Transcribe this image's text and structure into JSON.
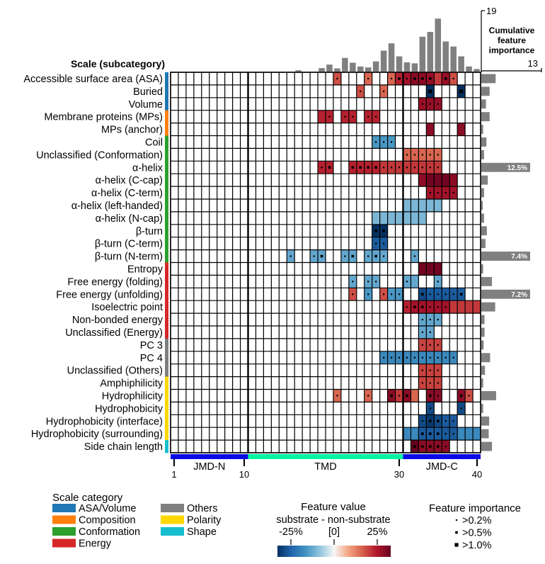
{
  "chart_data": {
    "type": "heatmap",
    "row_axis_label": "Scale (subcategory)",
    "positions": {
      "start": 1,
      "end": 40,
      "tick_labels": [
        "1",
        "10",
        "30",
        "40"
      ]
    },
    "regions": [
      {
        "name": "JMD-N",
        "start": 1,
        "end": 10,
        "color": "#0a0ae6"
      },
      {
        "name": "TMD",
        "start": 11,
        "end": 30,
        "color": "#00f5a0"
      },
      {
        "name": "JMD-C",
        "start": 31,
        "end": 40,
        "color": "#0a0ae6"
      }
    ],
    "rows": [
      {
        "label": "Accessible surface area (ASA)",
        "category": "ASA/Volume",
        "importance": 3.1
      },
      {
        "label": "Buried",
        "category": "ASA/Volume",
        "importance": 1.8
      },
      {
        "label": "Volume",
        "category": "ASA/Volume",
        "importance": 1.0
      },
      {
        "label": "Membrane proteins (MPs)",
        "category": "Composition",
        "importance": 1.8
      },
      {
        "label": "MPs (anchor)",
        "category": "Composition",
        "importance": 0.4
      },
      {
        "label": "Coil",
        "category": "Conformation",
        "importance": 1.1
      },
      {
        "label": "Unclassified (Conformation)",
        "category": "Conformation",
        "importance": 0.6
      },
      {
        "label": "α-helix",
        "category": "Conformation",
        "importance": 12.5,
        "label_value": "12.5%"
      },
      {
        "label": "α-helix (C-cap)",
        "category": "Conformation",
        "importance": 1.4
      },
      {
        "label": "α-helix (C-term)",
        "category": "Conformation",
        "importance": 0.6
      },
      {
        "label": "α-helix (left-handed)",
        "category": "Conformation",
        "importance": 0.3
      },
      {
        "label": "α-helix (N-cap)",
        "category": "Conformation",
        "importance": 0.6
      },
      {
        "label": "β-turn",
        "category": "Conformation",
        "importance": 1.2
      },
      {
        "label": "β-turn (C-term)",
        "category": "Conformation",
        "importance": 0.9
      },
      {
        "label": "β-turn (N-term)",
        "category": "Conformation",
        "importance": 7.4,
        "label_value": "7.4%"
      },
      {
        "label": "Entropy",
        "category": "Energy",
        "importance": 0.4
      },
      {
        "label": "Free energy (folding)",
        "category": "Energy",
        "importance": 2.3
      },
      {
        "label": "Free energy (unfolding)",
        "category": "Energy",
        "importance": 7.2,
        "label_value": "7.2%"
      },
      {
        "label": "Isoelectric point",
        "category": "Energy",
        "importance": 3.0
      },
      {
        "label": "Non-bonded energy",
        "category": "Energy",
        "importance": 0.7
      },
      {
        "label": "Unclassified (Energy)",
        "category": "Energy",
        "importance": 0.7
      },
      {
        "label": "PC 3",
        "category": "Others",
        "importance": 0.5
      },
      {
        "label": "PC 4",
        "category": "Others",
        "importance": 1.9
      },
      {
        "label": "Unclassified (Others)",
        "category": "Others",
        "importance": 0.8
      },
      {
        "label": "Amphiphilicity",
        "category": "Polarity",
        "importance": 0.4
      },
      {
        "label": "Hydrophilicity",
        "category": "Polarity",
        "importance": 3.2
      },
      {
        "label": "Hydrophobicity",
        "category": "Polarity",
        "importance": 0.4
      },
      {
        "label": "Hydrophobicity (interface)",
        "category": "Polarity",
        "importance": 1.7
      },
      {
        "label": "Hydrophobicity (surrounding)",
        "category": "Polarity",
        "importance": 1.6
      },
      {
        "label": "Side chain length",
        "category": "Shape",
        "importance": 2.3
      }
    ],
    "cells": [
      [
        0,
        22,
        14,
        1
      ],
      [
        0,
        26,
        12,
        1
      ],
      [
        0,
        29,
        12,
        1
      ],
      [
        0,
        30,
        18,
        2
      ],
      [
        0,
        31,
        20,
        1
      ],
      [
        0,
        32,
        22,
        2
      ],
      [
        0,
        33,
        22,
        2
      ],
      [
        0,
        34,
        21,
        2
      ],
      [
        0,
        35,
        16,
        0
      ],
      [
        0,
        36,
        21,
        2
      ],
      [
        0,
        37,
        14,
        1
      ],
      [
        1,
        25,
        14,
        1
      ],
      [
        1,
        28,
        12,
        1
      ],
      [
        1,
        34,
        -25,
        3
      ],
      [
        1,
        38,
        -25,
        3
      ],
      [
        2,
        33,
        21,
        1
      ],
      [
        2,
        34,
        21,
        1
      ],
      [
        2,
        35,
        21,
        1
      ],
      [
        3,
        20,
        18,
        0
      ],
      [
        3,
        21,
        18,
        1
      ],
      [
        3,
        23,
        18,
        1
      ],
      [
        3,
        24,
        18,
        1
      ],
      [
        3,
        26,
        18,
        1
      ],
      [
        3,
        27,
        18,
        1
      ],
      [
        4,
        34,
        22,
        0
      ],
      [
        4,
        38,
        22,
        0
      ],
      [
        5,
        27,
        -12,
        1
      ],
      [
        5,
        28,
        -12,
        1
      ],
      [
        5,
        29,
        -12,
        1
      ],
      [
        6,
        31,
        12,
        1
      ],
      [
        6,
        32,
        12,
        1
      ],
      [
        6,
        33,
        12,
        1
      ],
      [
        6,
        34,
        12,
        1
      ],
      [
        6,
        35,
        12,
        1
      ],
      [
        7,
        20,
        18,
        1
      ],
      [
        7,
        21,
        18,
        2
      ],
      [
        7,
        24,
        18,
        2
      ],
      [
        7,
        25,
        18,
        2
      ],
      [
        7,
        26,
        18,
        2
      ],
      [
        7,
        27,
        18,
        2
      ],
      [
        7,
        28,
        16,
        1
      ],
      [
        7,
        29,
        16,
        1
      ],
      [
        7,
        30,
        16,
        1
      ],
      [
        7,
        31,
        16,
        1
      ],
      [
        7,
        32,
        16,
        1
      ],
      [
        7,
        33,
        16,
        1
      ],
      [
        7,
        34,
        16,
        1
      ],
      [
        7,
        35,
        16,
        1
      ],
      [
        8,
        33,
        22,
        0
      ],
      [
        8,
        34,
        24,
        0
      ],
      [
        8,
        35,
        24,
        0
      ],
      [
        8,
        36,
        24,
        0
      ],
      [
        8,
        37,
        22,
        0
      ],
      [
        9,
        34,
        20,
        1
      ],
      [
        9,
        35,
        20,
        1
      ],
      [
        9,
        36,
        20,
        1
      ],
      [
        9,
        37,
        20,
        1
      ],
      [
        10,
        31,
        -8,
        0
      ],
      [
        10,
        32,
        -8,
        0
      ],
      [
        10,
        33,
        -8,
        0
      ],
      [
        10,
        34,
        -8,
        0
      ],
      [
        10,
        35,
        -8,
        0
      ],
      [
        11,
        27,
        -8,
        0
      ],
      [
        11,
        28,
        -8,
        0
      ],
      [
        11,
        29,
        -8,
        0
      ],
      [
        11,
        30,
        -8,
        0
      ],
      [
        11,
        31,
        -8,
        0
      ],
      [
        11,
        32,
        -8,
        0
      ],
      [
        11,
        33,
        -8,
        0
      ],
      [
        12,
        27,
        -25,
        2
      ],
      [
        12,
        28,
        -25,
        2
      ],
      [
        13,
        27,
        -20,
        1
      ],
      [
        13,
        28,
        -20,
        1
      ],
      [
        14,
        16,
        -10,
        1
      ],
      [
        14,
        19,
        -10,
        1
      ],
      [
        14,
        20,
        -10,
        2
      ],
      [
        14,
        23,
        -10,
        1
      ],
      [
        14,
        24,
        -10,
        2
      ],
      [
        14,
        26,
        -10,
        1
      ],
      [
        14,
        27,
        -10,
        2
      ],
      [
        14,
        28,
        -10,
        1
      ],
      [
        14,
        32,
        -10,
        1
      ],
      [
        15,
        33,
        24,
        0
      ],
      [
        15,
        34,
        24,
        0
      ],
      [
        15,
        35,
        24,
        0
      ],
      [
        16,
        24,
        -10,
        1
      ],
      [
        16,
        26,
        -10,
        1
      ],
      [
        16,
        27,
        -10,
        1
      ],
      [
        16,
        31,
        -10,
        1
      ],
      [
        16,
        32,
        -10,
        0
      ],
      [
        16,
        35,
        -10,
        1
      ],
      [
        17,
        24,
        14,
        1
      ],
      [
        17,
        26,
        -12,
        1
      ],
      [
        17,
        28,
        14,
        1
      ],
      [
        17,
        29,
        -12,
        1
      ],
      [
        17,
        30,
        -12,
        1
      ],
      [
        17,
        33,
        -22,
        2
      ],
      [
        17,
        34,
        -20,
        1
      ],
      [
        17,
        35,
        -20,
        1
      ],
      [
        17,
        36,
        -20,
        1
      ],
      [
        17,
        37,
        -20,
        1
      ],
      [
        17,
        38,
        -20,
        2
      ],
      [
        18,
        31,
        18,
        1
      ],
      [
        18,
        32,
        20,
        2
      ],
      [
        18,
        33,
        20,
        2
      ],
      [
        18,
        34,
        20,
        1
      ],
      [
        18,
        35,
        20,
        1
      ],
      [
        18,
        36,
        20,
        1
      ],
      [
        18,
        37,
        16,
        0
      ],
      [
        18,
        38,
        16,
        0
      ],
      [
        18,
        39,
        16,
        0
      ],
      [
        18,
        40,
        16,
        0
      ],
      [
        19,
        33,
        -10,
        1
      ],
      [
        19,
        34,
        -10,
        1
      ],
      [
        19,
        35,
        -10,
        1
      ],
      [
        20,
        33,
        -10,
        1
      ],
      [
        20,
        34,
        -10,
        1
      ],
      [
        21,
        33,
        15,
        1
      ],
      [
        21,
        34,
        15,
        1
      ],
      [
        21,
        35,
        15,
        1
      ],
      [
        22,
        28,
        -14,
        1
      ],
      [
        22,
        29,
        -14,
        1
      ],
      [
        22,
        30,
        -14,
        1
      ],
      [
        22,
        31,
        -14,
        1
      ],
      [
        22,
        32,
        -14,
        1
      ],
      [
        22,
        33,
        -14,
        1
      ],
      [
        22,
        34,
        -14,
        1
      ],
      [
        22,
        35,
        -14,
        1
      ],
      [
        22,
        36,
        -14,
        1
      ],
      [
        22,
        37,
        -14,
        1
      ],
      [
        23,
        33,
        15,
        1
      ],
      [
        23,
        34,
        15,
        1
      ],
      [
        23,
        35,
        15,
        1
      ],
      [
        24,
        33,
        15,
        1
      ],
      [
        24,
        34,
        15,
        1
      ],
      [
        24,
        35,
        15,
        1
      ],
      [
        25,
        22,
        12,
        1
      ],
      [
        25,
        26,
        12,
        1
      ],
      [
        25,
        29,
        22,
        2
      ],
      [
        25,
        30,
        16,
        1
      ],
      [
        25,
        31,
        22,
        2
      ],
      [
        25,
        32,
        12,
        0
      ],
      [
        25,
        34,
        22,
        2
      ],
      [
        25,
        35,
        22,
        1
      ],
      [
        25,
        38,
        22,
        2
      ],
      [
        25,
        39,
        14,
        1
      ],
      [
        26,
        34,
        -22,
        1
      ],
      [
        26,
        38,
        -22,
        1
      ],
      [
        27,
        33,
        -22,
        1
      ],
      [
        27,
        34,
        -24,
        2
      ],
      [
        27,
        35,
        -22,
        2
      ],
      [
        27,
        36,
        -20,
        1
      ],
      [
        27,
        37,
        -20,
        1
      ],
      [
        28,
        31,
        -14,
        0
      ],
      [
        28,
        32,
        -14,
        0
      ],
      [
        28,
        33,
        -20,
        2
      ],
      [
        28,
        34,
        -20,
        2
      ],
      [
        28,
        35,
        -20,
        2
      ],
      [
        28,
        36,
        -20,
        1
      ],
      [
        28,
        37,
        -20,
        1
      ],
      [
        28,
        38,
        -14,
        0
      ],
      [
        28,
        39,
        -14,
        0
      ],
      [
        28,
        40,
        -14,
        0
      ],
      [
        29,
        32,
        25,
        2
      ],
      [
        29,
        33,
        22,
        2
      ],
      [
        29,
        34,
        22,
        2
      ],
      [
        29,
        35,
        22,
        2
      ],
      [
        29,
        36,
        22,
        1
      ]
    ],
    "cumulative_importance": {
      "title": "Cumulative feature importance",
      "ylim": [
        0,
        19
      ],
      "tick_labels": [
        "19",
        "13"
      ],
      "values": [
        0,
        0,
        0,
        0,
        0,
        0,
        0,
        0,
        0,
        0,
        0,
        0,
        0,
        0,
        0,
        0,
        0.4,
        0,
        0,
        1.1,
        2.2,
        1.0,
        4.3,
        2.8,
        1.6,
        1.3,
        3.2,
        6.6,
        8.9,
        4.8,
        2.9,
        2.6,
        11.0,
        12.5,
        16.7,
        9.5,
        7.9,
        4.8,
        1.6,
        0.8
      ]
    },
    "color_scale": {
      "title": "Feature value",
      "subtitle": "substrate - non-substrate",
      "tick_labels": [
        "-25%",
        "[0]",
        "25%"
      ],
      "range": [
        -25,
        25
      ]
    },
    "importance_legend": {
      "title": "Feature importance",
      "items": [
        ">0.2%",
        ">0.5%",
        ">1.0%"
      ]
    },
    "category_legend": {
      "title": "Scale category",
      "items": [
        {
          "name": "ASA/Volume",
          "color": "#1f77b4"
        },
        {
          "name": "Composition",
          "color": "#ff7f0e"
        },
        {
          "name": "Conformation",
          "color": "#2ca02c"
        },
        {
          "name": "Energy",
          "color": "#d62728"
        },
        {
          "name": "Others",
          "color": "#7f7f7f"
        },
        {
          "name": "Polarity",
          "color": "#ffd700"
        },
        {
          "name": "Shape",
          "color": "#17becf"
        }
      ]
    }
  }
}
